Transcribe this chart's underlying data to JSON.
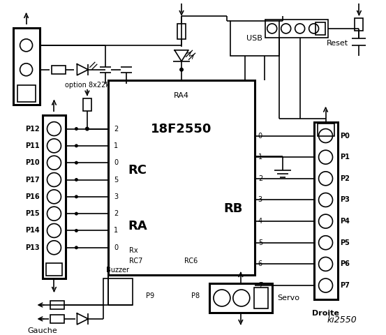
{
  "title": "ki2550",
  "bg_color": "#ffffff",
  "chip_label": "18F2550",
  "chip_sublabel": "RA4",
  "left_connector_pins": [
    "P12",
    "P11",
    "P10",
    "P17",
    "P16",
    "P15",
    "P14",
    "P13"
  ],
  "right_connector_pins": [
    "P0",
    "P1",
    "P2",
    "P3",
    "P4",
    "P5",
    "P6",
    "P7"
  ],
  "rc_labels": [
    "2",
    "1",
    "0",
    "5",
    "3",
    "2",
    "1",
    "0"
  ],
  "rb_labels": [
    "0",
    "1",
    "2",
    "3",
    "4",
    "5",
    "6",
    "7"
  ],
  "rc_text": "RC",
  "ra_text": "RA",
  "rb_text": "RB",
  "gauche_label": "Gauche",
  "droite_label": "Droite",
  "usb_label": "USB",
  "reset_label": "Reset",
  "servo_label": "Servo",
  "buzzer_label": "Buzzer",
  "p8_label": "P8",
  "p9_label": "P9",
  "option_label": "option 8x22k",
  "rx_label": "Rx",
  "rc7_label": "RC7",
  "rc6_label": "RC6"
}
